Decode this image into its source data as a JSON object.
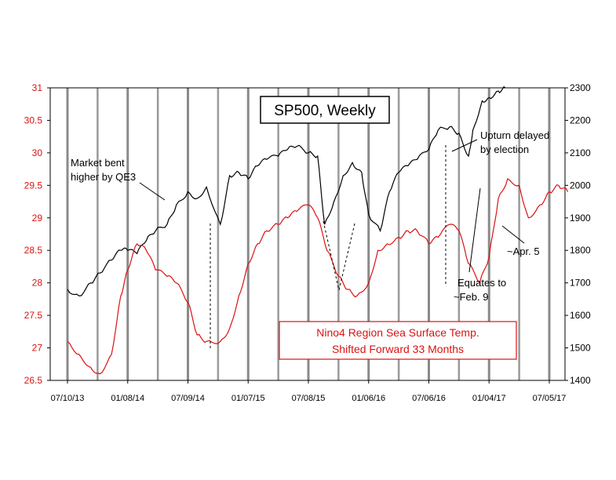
{
  "chart_data": {
    "type": "line",
    "title": "SP500, Weekly",
    "x_tick_labels": [
      "07/10/13",
      "01/08/14",
      "07/09/14",
      "01/07/15",
      "07/08/15",
      "01/06/16",
      "07/06/16",
      "01/04/17",
      "07/05/17"
    ],
    "y_left": {
      "ylim": [
        26.5,
        31
      ],
      "ticks": [
        26.5,
        27,
        27.5,
        28,
        28.5,
        29,
        29.5,
        30,
        30.5,
        31
      ],
      "tick_labels": [
        "26.5",
        "27",
        "27.5",
        "28",
        "28.5",
        "29",
        "29.5",
        "30",
        "30.5",
        "31"
      ]
    },
    "y_right": {
      "ylim": [
        1400,
        2300
      ],
      "ticks": [
        1400,
        1500,
        1600,
        1700,
        1800,
        1900,
        2000,
        2100,
        2200,
        2300
      ],
      "tick_labels": [
        "1400",
        "1500",
        "1600",
        "1700",
        "1800",
        "1900",
        "2000",
        "2100",
        "2200",
        "2300"
      ]
    },
    "grid": "vertical lines at x ticks",
    "series": [
      {
        "name": "SP500, Weekly",
        "axis": "right",
        "color": "#000000",
        "x": [
          "07/10/13",
          "08/14/13",
          "09/18/13",
          "10/16/13",
          "11/20/13",
          "12/18/13",
          "01/08/14",
          "02/05/14",
          "03/05/14",
          "04/02/14",
          "05/07/14",
          "06/04/14",
          "07/09/14",
          "08/06/14",
          "09/03/14",
          "10/15/14",
          "11/12/14",
          "12/10/14",
          "01/07/15",
          "02/04/15",
          "03/04/15",
          "04/08/15",
          "05/06/15",
          "06/03/15",
          "07/08/15",
          "08/05/15",
          "08/26/15",
          "09/23/15",
          "10/21/15",
          "11/18/15",
          "12/16/15",
          "01/06/16",
          "02/10/16",
          "03/09/16",
          "04/06/16",
          "05/04/16",
          "06/01/16",
          "07/06/16",
          "08/03/16",
          "09/07/16",
          "10/05/16",
          "11/03/16",
          "11/16/16",
          "12/14/16",
          "01/04/17",
          "02/01/17",
          "02/22/17"
        ],
        "values": [
          1680,
          1660,
          1700,
          1730,
          1770,
          1800,
          1800,
          1790,
          1830,
          1860,
          1880,
          1940,
          1980,
          1960,
          1995,
          1880,
          2030,
          2040,
          2020,
          2060,
          2080,
          2090,
          2110,
          2120,
          2100,
          2090,
          1880,
          1950,
          2030,
          2070,
          2040,
          1910,
          1860,
          1980,
          2040,
          2060,
          2080,
          2110,
          2170,
          2180,
          2160,
          2090,
          2170,
          2260,
          2270,
          2290,
          2300
        ]
      },
      {
        "name": "Nino4 Region Sea Surface Temp. Shifted Forward 33 Months",
        "axis": "left",
        "color": "#dd1111",
        "x": [
          "07/10/13",
          "08/14/13",
          "09/18/13",
          "10/16/13",
          "11/20/13",
          "12/18/13",
          "01/08/14",
          "02/05/14",
          "03/05/14",
          "04/02/14",
          "05/07/14",
          "06/04/14",
          "07/09/14",
          "08/06/14",
          "09/03/14",
          "10/15/14",
          "11/12/14",
          "12/10/14",
          "01/07/15",
          "02/04/15",
          "03/04/15",
          "04/08/15",
          "05/06/15",
          "06/03/15",
          "07/08/15",
          "08/05/15",
          "09/02/15",
          "10/07/15",
          "11/04/15",
          "12/02/15",
          "01/06/16",
          "02/03/16",
          "03/02/16",
          "04/06/16",
          "05/04/16",
          "06/01/16",
          "07/06/16",
          "08/03/16",
          "09/07/16",
          "10/05/16",
          "11/02/16",
          "12/07/16",
          "01/04/17",
          "02/01/17",
          "03/01/17",
          "04/05/17",
          "05/03/17",
          "06/07/17",
          "07/05/17",
          "08/02/17",
          "08/30/17"
        ],
        "values": [
          27.1,
          26.9,
          26.7,
          26.6,
          26.9,
          27.8,
          28.2,
          28.6,
          28.5,
          28.2,
          28.1,
          28.0,
          27.7,
          27.2,
          27.1,
          27.1,
          27.3,
          27.8,
          28.3,
          28.6,
          28.8,
          28.9,
          29.0,
          29.1,
          29.2,
          29.0,
          28.5,
          28.1,
          27.9,
          27.8,
          28.0,
          28.5,
          28.6,
          28.7,
          28.8,
          28.8,
          28.6,
          28.7,
          28.9,
          28.8,
          28.3,
          28.0,
          28.4,
          29.3,
          29.6,
          29.5,
          29.0,
          29.2,
          29.4,
          29.5,
          29.4
        ]
      }
    ],
    "annotations": [
      {
        "id": "qe3",
        "lines": [
          "Market bent",
          "higher by QE3"
        ]
      },
      {
        "id": "election",
        "lines": [
          "Upturn delayed",
          "by election"
        ]
      },
      {
        "id": "apr5",
        "lines": [
          "~Apr. 5"
        ]
      },
      {
        "id": "feb9",
        "lines": [
          "Equates to",
          "~Feb. 9"
        ]
      },
      {
        "id": "nino",
        "lines": [
          "Nino4 Region Sea Surface Temp.",
          "Shifted Forward 33 Months"
        ]
      }
    ]
  }
}
